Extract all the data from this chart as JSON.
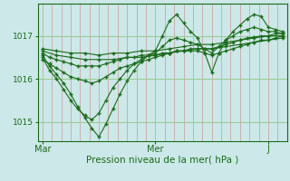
{
  "background_color": "#cce8e8",
  "line_color": "#1a6b1a",
  "grid_color_v": "#cc9999",
  "grid_color_h": "#99cc99",
  "ylabel_vals": [
    1015,
    1016,
    1017
  ],
  "xlabel_ticks": [
    0,
    48,
    96
  ],
  "xlabel_labels": [
    "Mar",
    "Mer",
    "J"
  ],
  "xlabel_bottom": "Pression niveau de la mer( hPa )",
  "xlim": [
    -2,
    104
  ],
  "ylim": [
    1014.55,
    1017.75
  ],
  "lines": [
    [
      0,
      1016.55,
      3,
      1016.3,
      6,
      1016.1,
      9,
      1015.9,
      12,
      1015.65,
      15,
      1015.35,
      18,
      1015.1,
      21,
      1014.85,
      24,
      1014.65,
      27,
      1014.95,
      30,
      1015.3,
      33,
      1015.65,
      36,
      1015.95,
      39,
      1016.2,
      42,
      1016.4,
      45,
      1016.55,
      48,
      1016.65,
      51,
      1017.0,
      54,
      1017.35,
      57,
      1017.5,
      60,
      1017.3,
      63,
      1017.1,
      66,
      1016.95,
      69,
      1016.6,
      72,
      1016.15,
      75,
      1016.6,
      78,
      1016.9,
      81,
      1017.1,
      84,
      1017.25,
      87,
      1017.4,
      90,
      1017.5,
      93,
      1017.45,
      96,
      1017.2,
      99,
      1017.15,
      102,
      1017.1
    ],
    [
      0,
      1016.5,
      3,
      1016.2,
      6,
      1016.0,
      9,
      1015.75,
      12,
      1015.5,
      15,
      1015.3,
      18,
      1015.15,
      21,
      1015.05,
      24,
      1015.2,
      27,
      1015.5,
      30,
      1015.8,
      33,
      1016.0,
      36,
      1016.2,
      39,
      1016.35,
      42,
      1016.45,
      45,
      1016.55,
      48,
      1016.6,
      51,
      1016.75,
      54,
      1016.9,
      57,
      1016.95,
      60,
      1016.9,
      63,
      1016.85,
      66,
      1016.8,
      69,
      1016.7,
      72,
      1016.6,
      75,
      1016.75,
      78,
      1016.9,
      81,
      1017.0,
      84,
      1017.1,
      87,
      1017.15,
      90,
      1017.2,
      93,
      1017.15,
      96,
      1017.1,
      99,
      1017.1,
      102,
      1017.05
    ],
    [
      0,
      1016.45,
      3,
      1016.35,
      6,
      1016.25,
      9,
      1016.15,
      12,
      1016.05,
      15,
      1016.0,
      18,
      1015.95,
      21,
      1015.9,
      24,
      1015.95,
      27,
      1016.05,
      30,
      1016.15,
      33,
      1016.25,
      36,
      1016.3,
      39,
      1016.35,
      42,
      1016.4,
      45,
      1016.45,
      48,
      1016.5,
      51,
      1016.55,
      54,
      1016.6,
      57,
      1016.65,
      60,
      1016.65,
      63,
      1016.65,
      66,
      1016.65,
      69,
      1016.6,
      72,
      1016.55,
      75,
      1016.6,
      78,
      1016.65,
      81,
      1016.7,
      84,
      1016.75,
      87,
      1016.8,
      90,
      1016.85,
      93,
      1016.9,
      96,
      1016.9,
      99,
      1016.95,
      102,
      1017.0
    ],
    [
      0,
      1016.6,
      3,
      1016.5,
      6,
      1016.45,
      9,
      1016.4,
      12,
      1016.35,
      15,
      1016.3,
      18,
      1016.3,
      21,
      1016.3,
      24,
      1016.3,
      27,
      1016.35,
      30,
      1016.4,
      33,
      1016.45,
      36,
      1016.5,
      39,
      1016.5,
      42,
      1016.55,
      45,
      1016.55,
      48,
      1016.55,
      51,
      1016.6,
      54,
      1016.6,
      57,
      1016.65,
      60,
      1016.65,
      63,
      1016.7,
      66,
      1016.7,
      69,
      1016.7,
      72,
      1016.7,
      75,
      1016.75,
      78,
      1016.8,
      81,
      1016.85,
      84,
      1016.9,
      87,
      1016.95,
      90,
      1016.97,
      93,
      1017.0,
      96,
      1017.0,
      99,
      1017.05,
      102,
      1017.05
    ],
    [
      0,
      1016.65,
      6,
      1016.55,
      12,
      1016.5,
      18,
      1016.45,
      24,
      1016.45,
      30,
      1016.45,
      36,
      1016.5,
      42,
      1016.5,
      48,
      1016.55,
      54,
      1016.6,
      60,
      1016.65,
      66,
      1016.7,
      72,
      1016.7,
      78,
      1016.75,
      84,
      1016.8,
      90,
      1016.85,
      96,
      1016.9,
      102,
      1016.95
    ],
    [
      0,
      1016.7,
      6,
      1016.65,
      12,
      1016.6,
      18,
      1016.6,
      24,
      1016.55,
      30,
      1016.6,
      36,
      1016.6,
      42,
      1016.65,
      48,
      1016.65,
      54,
      1016.7,
      60,
      1016.75,
      66,
      1016.8,
      72,
      1016.8,
      78,
      1016.85,
      84,
      1016.9,
      90,
      1016.95,
      96,
      1017.0,
      102,
      1017.0
    ]
  ]
}
